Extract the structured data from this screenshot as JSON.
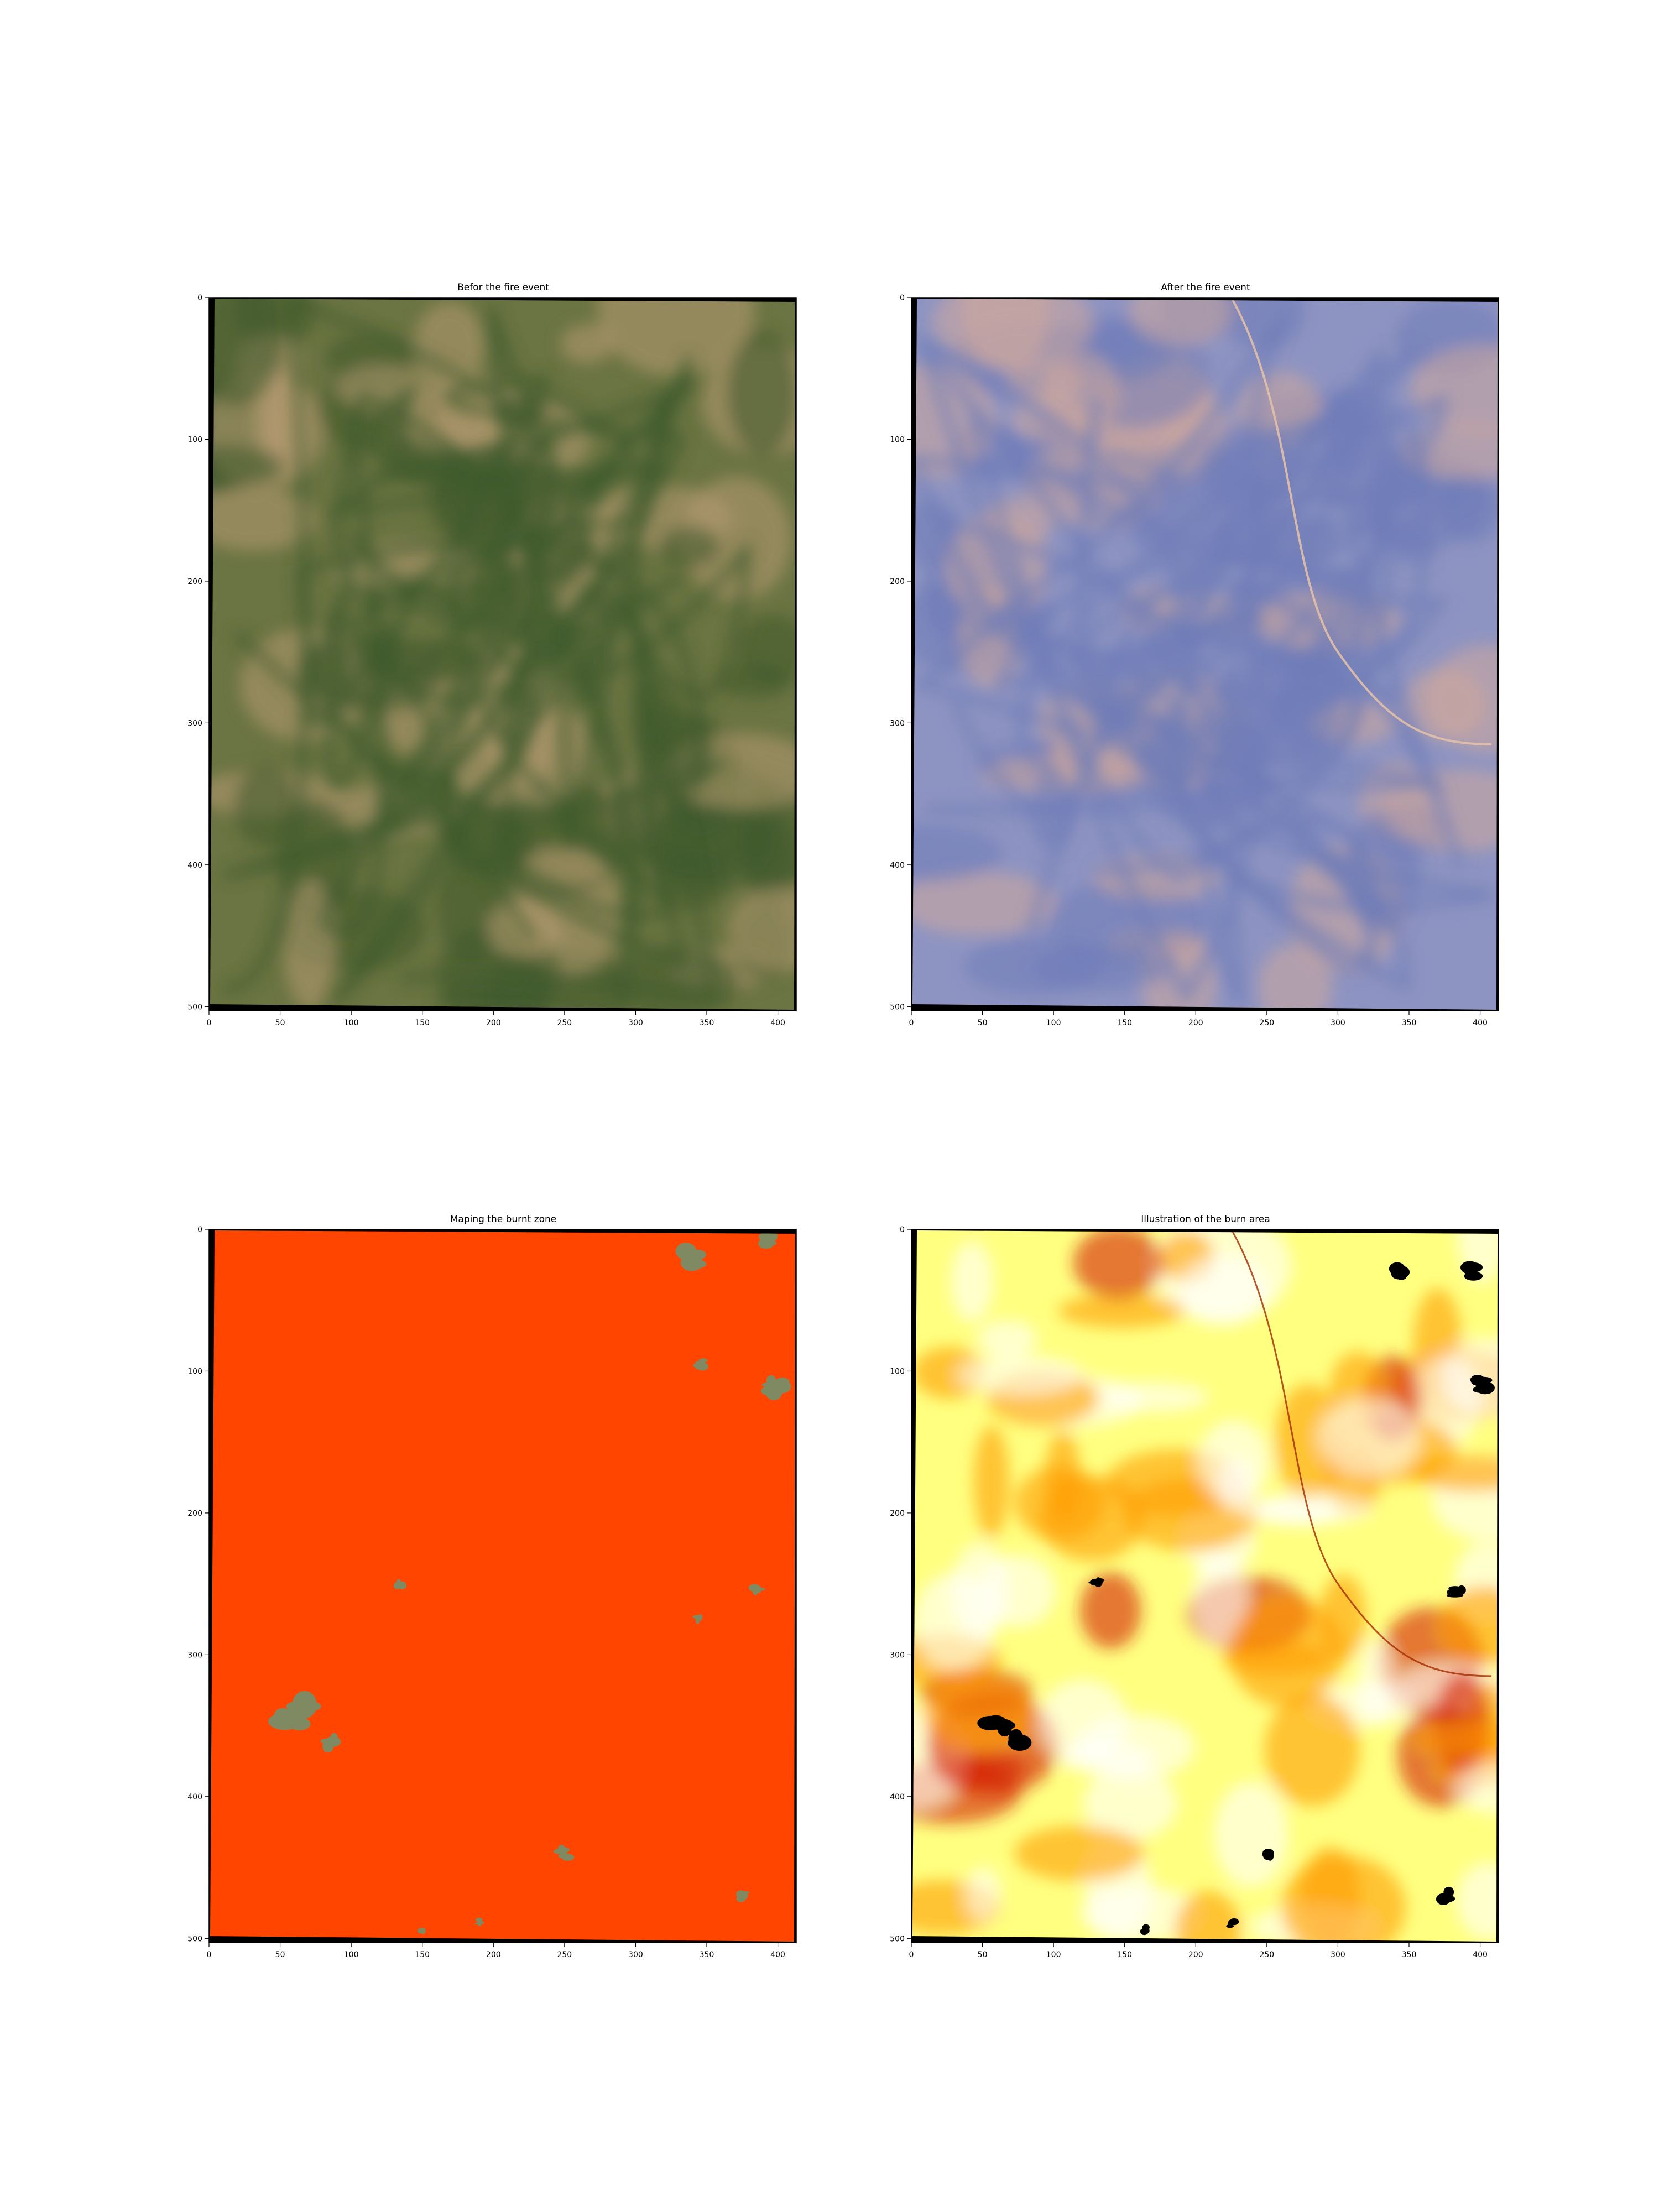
{
  "figure": {
    "background": "#ffffff"
  },
  "chart_data": [
    {
      "type": "heatmap",
      "title": "Befor the fire event",
      "xlim": [
        0,
        413
      ],
      "ylim": [
        503,
        0
      ],
      "xticks": [
        0,
        50,
        100,
        150,
        200,
        250,
        300,
        350,
        400
      ],
      "yticks": [
        0,
        100,
        200,
        300,
        400,
        500
      ],
      "image": "true-color satellite image before the fire: greenish-olive grassland with darker green drainage channels and tan bare patches",
      "colors": {
        "base": "#6b7443",
        "channel": "#3f5a2c",
        "bare": "#b69a72",
        "nodata": "#000000"
      }
    },
    {
      "type": "heatmap",
      "title": "After the fire event",
      "xlim": [
        0,
        413
      ],
      "ylim": [
        503,
        0
      ],
      "xticks": [
        0,
        50,
        100,
        150,
        200,
        250,
        300,
        350,
        400
      ],
      "yticks": [
        0,
        100,
        200,
        300,
        400,
        500
      ],
      "image": "false-color satellite image after the fire: bluish-lavender landscape with pinkish-tan patches, reddish burn traces and a curving light road",
      "colors": {
        "base": "#8e94c2",
        "dark": "#6e7cb8",
        "bare": "#cfa89c",
        "road": "#e2c0a8",
        "nodata": "#000000"
      }
    },
    {
      "type": "heatmap",
      "title": "Maping the burnt zone",
      "xlim": [
        0,
        413
      ],
      "ylim": [
        503,
        0
      ],
      "xticks": [
        0,
        50,
        100,
        150,
        200,
        250,
        300,
        350,
        400
      ],
      "yticks": [
        0,
        100,
        200,
        300,
        400,
        500
      ],
      "image": "burn mask: almost entirely orange-red burnt area with a few small unburnt grey-green patches",
      "colors": {
        "burnt": "#ff4500",
        "unburnt": "#7f8a63",
        "nodata": "#000000"
      }
    },
    {
      "type": "heatmap",
      "title": "Illustration of the burn area",
      "xlim": [
        0,
        413
      ],
      "ylim": [
        503,
        0
      ],
      "xticks": [
        0,
        50,
        100,
        150,
        200,
        250,
        300,
        350,
        400
      ],
      "yticks": [
        0,
        100,
        200,
        300,
        400,
        500
      ],
      "image": "burn severity map in a hot colormap: yellow and white low values, orange and red moderate, black high-severity spots",
      "colors": {
        "low": "#ffff80",
        "mid": "#ff9d00",
        "high": "#d42000",
        "max": "#000000",
        "nodata": "#000000"
      }
    }
  ]
}
